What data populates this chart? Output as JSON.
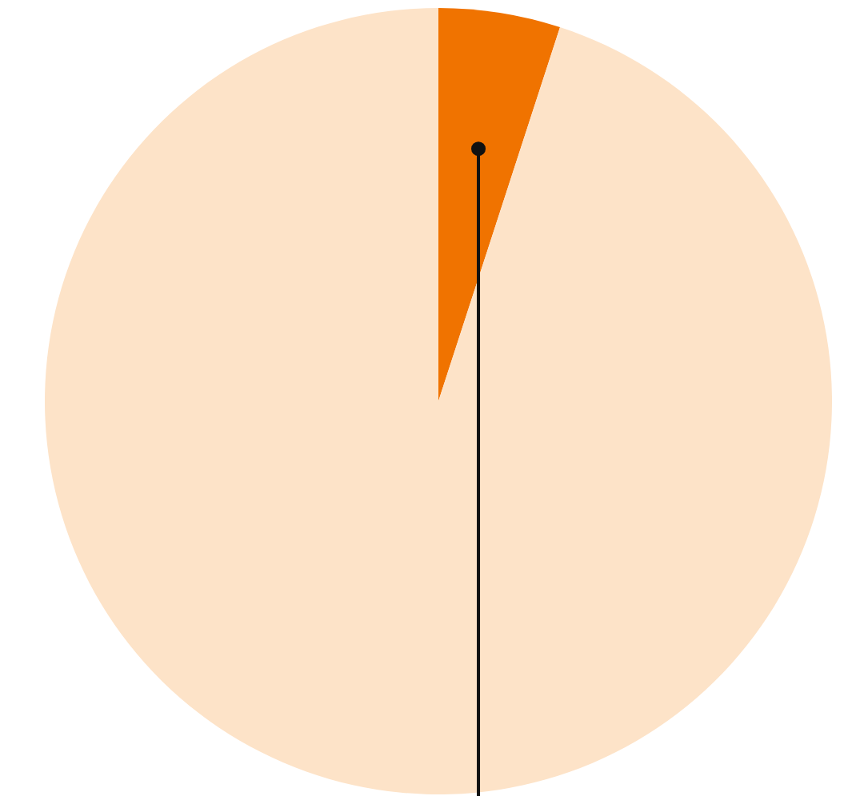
{
  "chart_data": {
    "type": "pie",
    "categories": [
      null,
      null
    ],
    "values": [
      5,
      95
    ],
    "colors": [
      "#f07300",
      "#fde3c8"
    ]
  }
}
